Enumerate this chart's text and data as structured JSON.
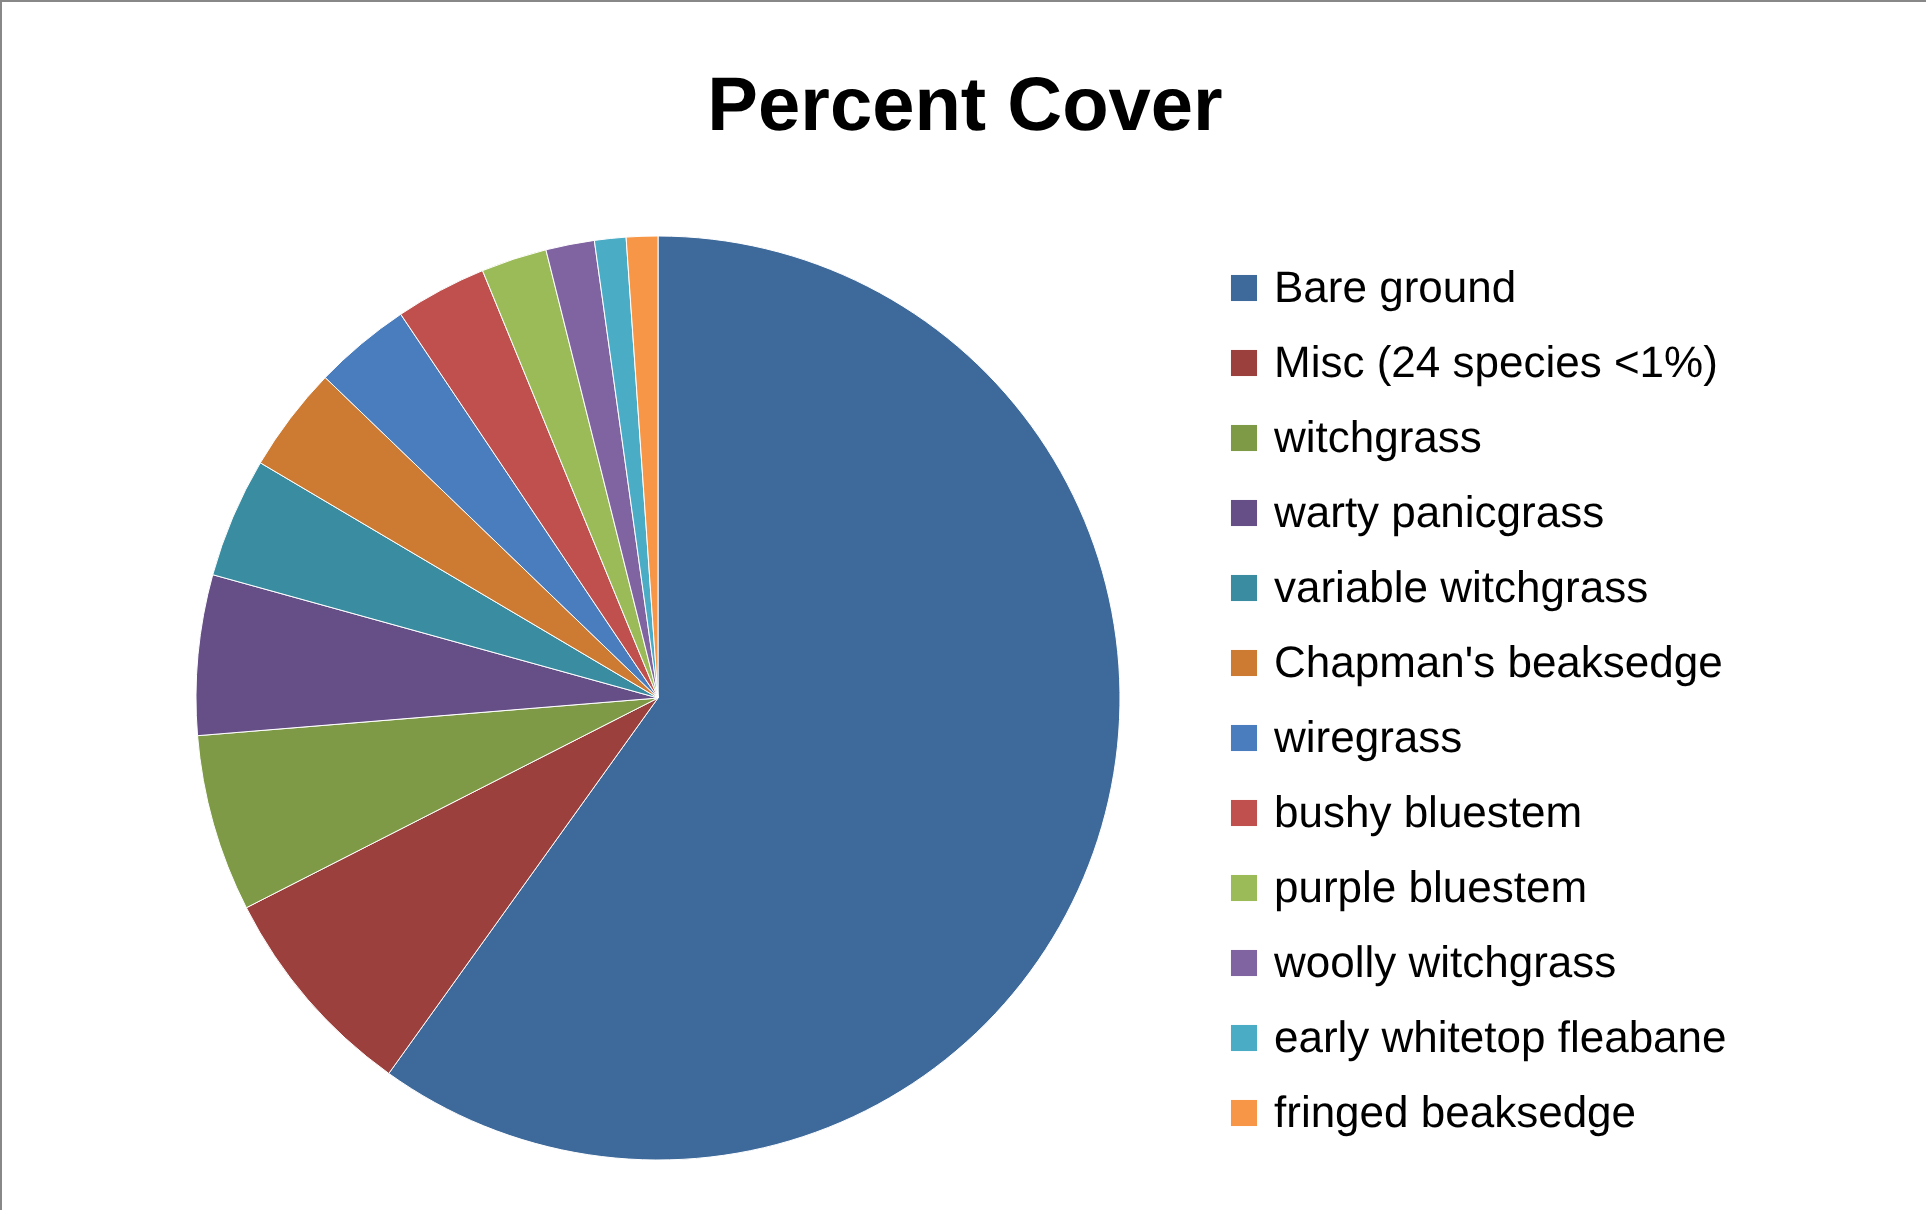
{
  "chart_data": {
    "type": "pie",
    "title": "Percent Cover",
    "categories": [
      "Bare ground",
      "Misc (24 species <1%)",
      "witchgrass",
      "warty panicgrass",
      "variable witchgrass",
      "Chapman's beaksedge",
      "wiregrass",
      "bushy bluestem",
      "purple bluestem",
      "woolly witchgrass",
      "early whitetop fleabane",
      "fringed beaksedge"
    ],
    "values": [
      59.9,
      7.6,
      6.2,
      5.6,
      4.2,
      3.7,
      3.4,
      3.2,
      2.3,
      1.7,
      1.1,
      1.1
    ],
    "colors": [
      "#3e6a9b",
      "#9c403d",
      "#7e9a47",
      "#664f87",
      "#3a8da0",
      "#cd7a33",
      "#4a7dbe",
      "#c0504d",
      "#9bbb59",
      "#8064a2",
      "#4bacc6",
      "#f79646"
    ],
    "legend": "right"
  }
}
